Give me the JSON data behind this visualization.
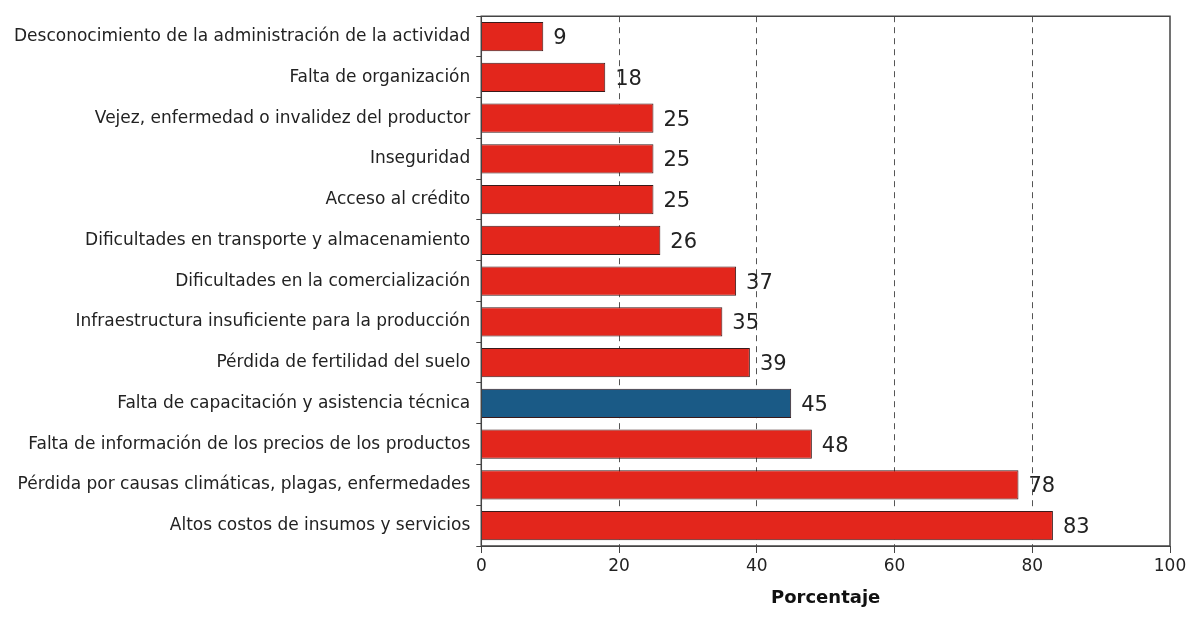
{
  "chart_data": {
    "type": "bar",
    "orientation": "horizontal",
    "xlabel": "Porcentaje",
    "categories": [
      "Desconocimiento de la administración de la actividad",
      "Falta de organización",
      "Vejez, enfermedad o invalidez del productor",
      "Inseguridad",
      "Acceso al crédito",
      "Dificultades en transporte y almacenamiento",
      "Dificultades en la comercialización",
      "Infraestructura insuficiente para la producción",
      "Pérdida de fertilidad del suelo",
      "Falta de capacitación y asistencia técnica",
      "Falta de información de los precios de los productos",
      "Pérdida por causas climáticas, plagas, enfermedades",
      "Altos costos de insumos y servicios"
    ],
    "values": [
      9,
      18,
      25,
      25,
      25,
      26,
      37,
      35,
      39,
      45,
      48,
      78,
      83
    ],
    "colors": [
      "#e3261c",
      "#e3261c",
      "#e3261c",
      "#e3261c",
      "#e3261c",
      "#e3261c",
      "#e3261c",
      "#e3261c",
      "#e3261c",
      "#1a5a86",
      "#e3261c",
      "#e3261c",
      "#e3261c"
    ],
    "xlim": [
      0,
      100
    ],
    "xticks": [
      0,
      20,
      40,
      60,
      80,
      100
    ],
    "grid": "x",
    "data_labels": true,
    "legend": false
  }
}
